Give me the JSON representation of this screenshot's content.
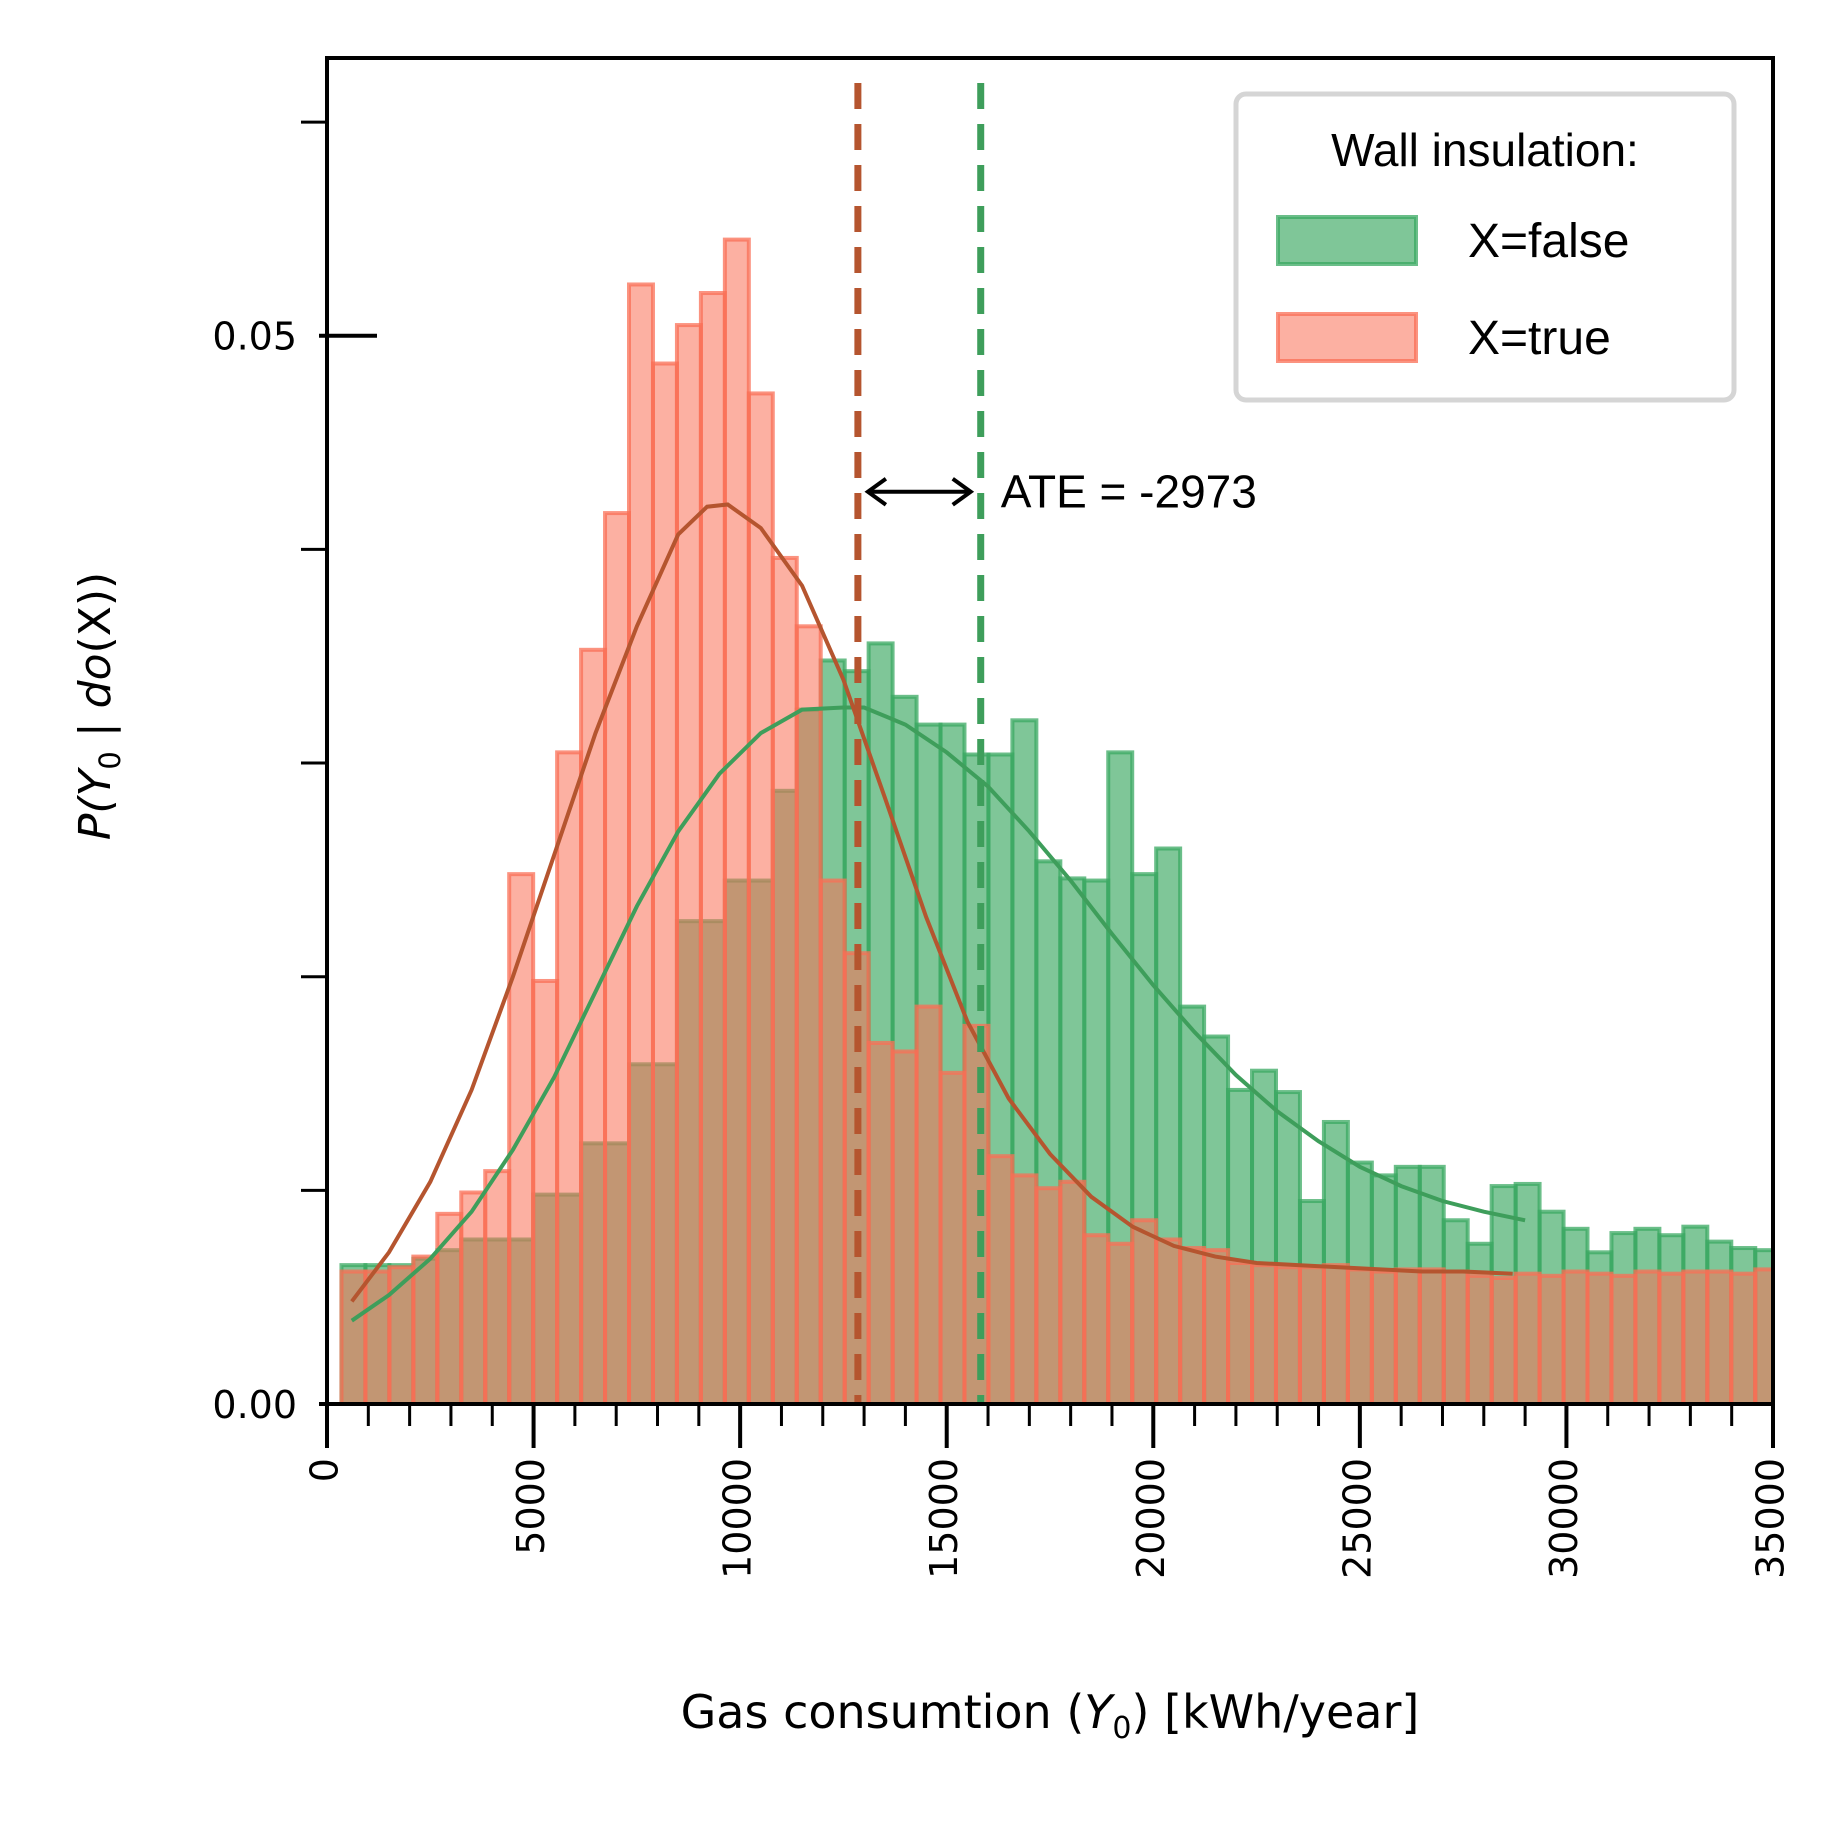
{
  "chart_data": {
    "type": "bar",
    "subtype": "overlaid-histogram-with-density-curves",
    "title": "",
    "xlabel": {
      "prefix": "Gas consumtion (",
      "symbol": "Y",
      "subscript": "0",
      "suffix": ") [kWh/year]"
    },
    "ylabel": {
      "p1": "P(",
      "symbol": "Y",
      "subscript": "0",
      "p2": " | ",
      "do": "do",
      "p3": "(X))"
    },
    "xlim": [
      0,
      35000
    ],
    "ylim": [
      0,
      0.063
    ],
    "x_ticks": [
      "0",
      "5000",
      "10000",
      "15000",
      "20000",
      "25000",
      "30000",
      "35000"
    ],
    "x_tick_values": [
      0,
      5000,
      10000,
      15000,
      20000,
      25000,
      30000,
      35000
    ],
    "x_minor_step": 1000,
    "y_ticks": [
      "0.00",
      "0.05"
    ],
    "y_tick_values": [
      0,
      0.05
    ],
    "y_minor_values": [
      0.01,
      0.02,
      0.03,
      0.04,
      0.06
    ],
    "grid": false,
    "legend": {
      "title": "Wall insulation:",
      "placement": "top-right",
      "entries": [
        "X=false",
        "X=true"
      ]
    },
    "bin_start": 350,
    "bin_width": 580,
    "series": [
      {
        "name": "X=false",
        "color": "#3aa861",
        "fill_opacity": 0.65,
        "edge_color": "#3aa861",
        "values": [
          0.0065,
          0.0065,
          0.0065,
          0.0068,
          0.0072,
          0.0077,
          0.0077,
          0.0077,
          0.0098,
          0.0098,
          0.0122,
          0.0122,
          0.0159,
          0.0159,
          0.0226,
          0.0226,
          0.0245,
          0.0245,
          0.0287,
          0.0325,
          0.0348,
          0.0343,
          0.0356,
          0.0331,
          0.0318,
          0.0318,
          0.0304,
          0.0304,
          0.032,
          0.0254,
          0.0246,
          0.0245,
          0.0305,
          0.0248,
          0.026,
          0.0186,
          0.0172,
          0.0147,
          0.0156,
          0.0146,
          0.0095,
          0.0132,
          0.0113,
          0.0107,
          0.0111,
          0.0111,
          0.0086,
          0.0075,
          0.0102,
          0.0103,
          0.009,
          0.0082,
          0.0071,
          0.008,
          0.0082,
          0.0079,
          0.0083,
          0.0076,
          0.0073,
          0.0072,
          0.0071,
          0.0098
        ]
      },
      {
        "name": "X=true",
        "color": "#fa6f56",
        "fill_opacity": 0.55,
        "edge_color": "#fa6f56",
        "values": [
          0.0062,
          0.0062,
          0.0064,
          0.0069,
          0.0089,
          0.0099,
          0.0109,
          0.0248,
          0.0198,
          0.0305,
          0.0353,
          0.0417,
          0.0524,
          0.0487,
          0.0505,
          0.052,
          0.0545,
          0.0473,
          0.0396,
          0.0364,
          0.0245,
          0.0211,
          0.0169,
          0.0165,
          0.0186,
          0.0155,
          0.0177,
          0.0116,
          0.0107,
          0.0101,
          0.0104,
          0.0079,
          0.0075,
          0.0086,
          0.0077,
          0.0073,
          0.0072,
          0.0066,
          0.0065,
          0.0064,
          0.0064,
          0.0065,
          0.0063,
          0.0062,
          0.0063,
          0.0063,
          0.0062,
          0.006,
          0.0059,
          0.0061,
          0.006,
          0.0062,
          0.0061,
          0.006,
          0.0062,
          0.0061,
          0.0062,
          0.0062,
          0.0061,
          0.0063,
          0.0065,
          0.0068
        ]
      }
    ],
    "curves": [
      {
        "name": "X=false",
        "color": "#3e9e5b",
        "x": [
          600,
          1500,
          2500,
          3500,
          4500,
          5500,
          6500,
          7500,
          8500,
          9500,
          10500,
          11500,
          12500,
          13000,
          14000,
          15000,
          16000,
          17000,
          18000,
          19000,
          20000,
          21000,
          22000,
          23000,
          24000,
          25000,
          26000,
          27000,
          28000,
          29000
        ],
        "y": [
          0.0039,
          0.0051,
          0.0068,
          0.009,
          0.0119,
          0.0153,
          0.0193,
          0.0233,
          0.0268,
          0.0295,
          0.0314,
          0.0325,
          0.0326,
          0.0326,
          0.0318,
          0.0305,
          0.0289,
          0.0268,
          0.0245,
          0.022,
          0.0196,
          0.0174,
          0.0154,
          0.0137,
          0.0123,
          0.0111,
          0.0102,
          0.0095,
          0.009,
          0.0086
        ]
      },
      {
        "name": "X=true",
        "color": "#b5552f",
        "x": [
          600,
          1500,
          2500,
          3500,
          4500,
          5500,
          6500,
          7500,
          8500,
          9200,
          9700,
          10500,
          11500,
          12500,
          13500,
          14500,
          15500,
          16500,
          17500,
          18500,
          19500,
          20500,
          21500,
          22500,
          23500,
          24500,
          25500,
          26500,
          27500,
          28700
        ],
        "y": [
          0.0048,
          0.0071,
          0.0104,
          0.0147,
          0.02,
          0.0257,
          0.0314,
          0.0364,
          0.0407,
          0.042,
          0.0421,
          0.041,
          0.0383,
          0.0339,
          0.0284,
          0.0228,
          0.0179,
          0.0143,
          0.0117,
          0.0097,
          0.0083,
          0.0074,
          0.0069,
          0.0066,
          0.0065,
          0.0064,
          0.0063,
          0.0062,
          0.0062,
          0.0061
        ]
      }
    ],
    "vlines": [
      {
        "name": "X=true mean",
        "x": 12850,
        "color": "#b5552f"
      },
      {
        "name": "X=false mean",
        "x": 15823,
        "color": "#3e9e5b"
      }
    ],
    "annotation": {
      "text": "ATE = -2973",
      "y": 0.0427
    }
  }
}
